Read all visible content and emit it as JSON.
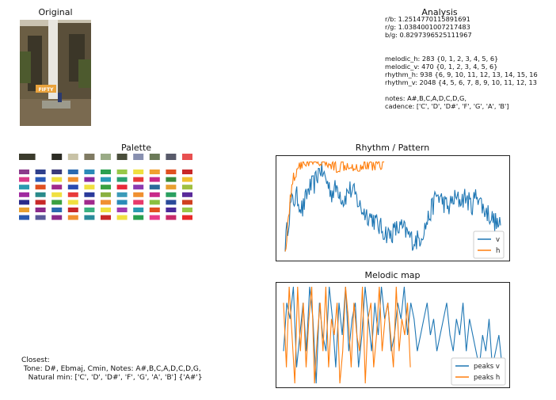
{
  "original": {
    "title": "Original",
    "sign_text": "FIFTY",
    "colors": {
      "sky": "#c9c2b0",
      "rock_dark": "#3b3628",
      "rock_mid": "#6b5e44",
      "water": "#e8e6e0",
      "foliage": "#4d5a2e",
      "ground": "#7a6a50",
      "sign": "#e9a23b"
    }
  },
  "analysis": {
    "title": "Analysis",
    "lines": [
      "r/b: 1.2514770115891691",
      "r/g: 1.0384001007217483",
      "b/g: 0.8297396525111967",
      "",
      "",
      "melodic_h: 283 {0, 1, 2, 3, 4, 5, 6}",
      "melodic_v: 470 {0, 1, 2, 3, 4, 5, 6}",
      "rhythm_h: 938 {6, 9, 10, 11, 12, 13, 14, 15, 16",
      "rhythm_v: 2048 {4, 5, 6, 7, 8, 9, 10, 11, 12, 13",
      "",
      "notes: A#,B,C,A,D,C,D,G,",
      "cadence: ['C', 'D', 'D#', 'F', 'G', 'A', 'B']"
    ]
  },
  "palette": {
    "title": "Palette",
    "top_row": [
      "#3b3b2c",
      "#ffffff",
      "#2c2c24",
      "#c8c2a6",
      "#7f7a62",
      "#9aab86",
      "#4a4e3b",
      "#8890b0",
      "#6b7a58",
      "#585a6a",
      "#e85050"
    ],
    "grid": [
      [
        "#8b3a8b",
        "#2e3f8c",
        "#3a3a7a",
        "#2a6ab0",
        "#2a8ab8",
        "#2aa050",
        "#98c848",
        "#f0e040",
        "#f0a030",
        "#e05020",
        "#c82828"
      ],
      [
        "#d83a8a",
        "#2a5ab8",
        "#f0e040",
        "#f09030",
        "#8b2aa0",
        "#2a9ab8",
        "#2aa070",
        "#e83a3a",
        "#c82a8a",
        "#3a8a3a",
        "#f0c030"
      ],
      [
        "#2a9ab0",
        "#e05020",
        "#a02a8b",
        "#2a4ab0",
        "#f0e040",
        "#3aa040",
        "#e82a3a",
        "#8b3ab0",
        "#2a6a9a",
        "#e8a030",
        "#a0c040"
      ],
      [
        "#a02aa0",
        "#2a8a8a",
        "#f0e040",
        "#e83a3a",
        "#2a3a9a",
        "#8ab040",
        "#3a9ab8",
        "#f09030",
        "#c82a8a",
        "#2aa060",
        "#5a2a9a"
      ],
      [
        "#2a2a8a",
        "#c82828",
        "#3aa040",
        "#f0e040",
        "#a02a8b",
        "#f09030",
        "#2a8ab8",
        "#e83a6a",
        "#8ac040",
        "#2a4a9a",
        "#d04020"
      ],
      [
        "#e8a030",
        "#8b2a8b",
        "#2a6ab0",
        "#c82828",
        "#3ab080",
        "#f0e040",
        "#a03ab0",
        "#2a9ab0",
        "#e05020",
        "#4a2a9a",
        "#98c848"
      ],
      [
        "#2a5ab0",
        "#5a5a9a",
        "#8b2a8b",
        "#f09030",
        "#2a8a9a",
        "#c82828",
        "#f0e040",
        "#2aa050",
        "#e83a8a",
        "#c82a6a",
        "#e82a2a"
      ]
    ]
  },
  "closest": {
    "lines": [
      "Closest:",
      " Tone: D#, Ebmaj, Cmin, Notes: A#,B,C,A,D,C,D,G,",
      "   Natural min: ['C', 'D', 'D#', 'F', 'G', 'A', 'B'] {'A#'}"
    ]
  },
  "chart_data": [
    {
      "type": "line",
      "title": "Rhythm / Pattern",
      "colors": {
        "v": "#1f77b4",
        "h": "#ff7f0e"
      },
      "legend_position": "lower-right",
      "series": [
        {
          "name": "v",
          "shape": [
            0.14,
            0.55,
            0.62,
            0.48,
            0.7,
            0.75,
            0.92,
            0.8,
            0.66,
            0.72,
            0.58,
            0.7,
            0.64,
            0.5,
            0.44,
            0.4,
            0.32,
            0.26,
            0.22,
            0.28,
            0.3,
            0.24,
            0.16,
            0.18,
            0.3,
            0.46,
            0.64,
            0.58,
            0.5,
            0.6,
            0.58,
            0.62,
            0.52,
            0.66,
            0.5,
            0.44,
            0.36,
            0.3
          ]
        },
        {
          "name": "h",
          "shape": [
            0.05,
            0.75,
            0.95,
            0.98,
            0.98,
            0.96,
            0.98,
            0.95,
            0.93,
            0.96,
            0.96,
            0.92,
            0.96,
            0.95,
            0.97,
            0.97
          ]
        }
      ]
    },
    {
      "type": "line",
      "title": "Melodic map",
      "colors": {
        "v": "#1f77b4",
        "h": "#ff7f0e"
      },
      "legend_position": "lower-right",
      "series": [
        {
          "name": "peaks v",
          "levels": [
            2,
            5,
            4,
            6,
            1,
            3,
            5,
            2,
            6,
            4,
            0,
            5,
            3,
            2,
            6,
            4,
            1,
            5,
            3,
            6,
            2,
            4,
            5,
            1,
            3,
            6,
            4,
            2,
            5,
            3,
            6,
            4,
            5,
            2,
            3,
            5,
            4,
            6,
            3,
            5,
            4,
            2,
            3,
            4,
            5,
            3,
            4,
            2,
            3,
            4,
            5,
            3,
            2,
            4,
            3,
            5,
            2,
            4,
            3,
            2,
            1,
            3,
            2,
            4,
            1,
            2,
            3,
            1
          ]
        },
        {
          "name": "peaks h",
          "levels": [
            5,
            1,
            6,
            3,
            0,
            6,
            2,
            5,
            1,
            4,
            6,
            0,
            3,
            5,
            2,
            6,
            1,
            4,
            3,
            5,
            0,
            2,
            6,
            4,
            1,
            5,
            3,
            2,
            6,
            0,
            4,
            5,
            1,
            3,
            6,
            2,
            4,
            5,
            3,
            1,
            6,
            2,
            4,
            3,
            5,
            1
          ]
        }
      ]
    }
  ]
}
